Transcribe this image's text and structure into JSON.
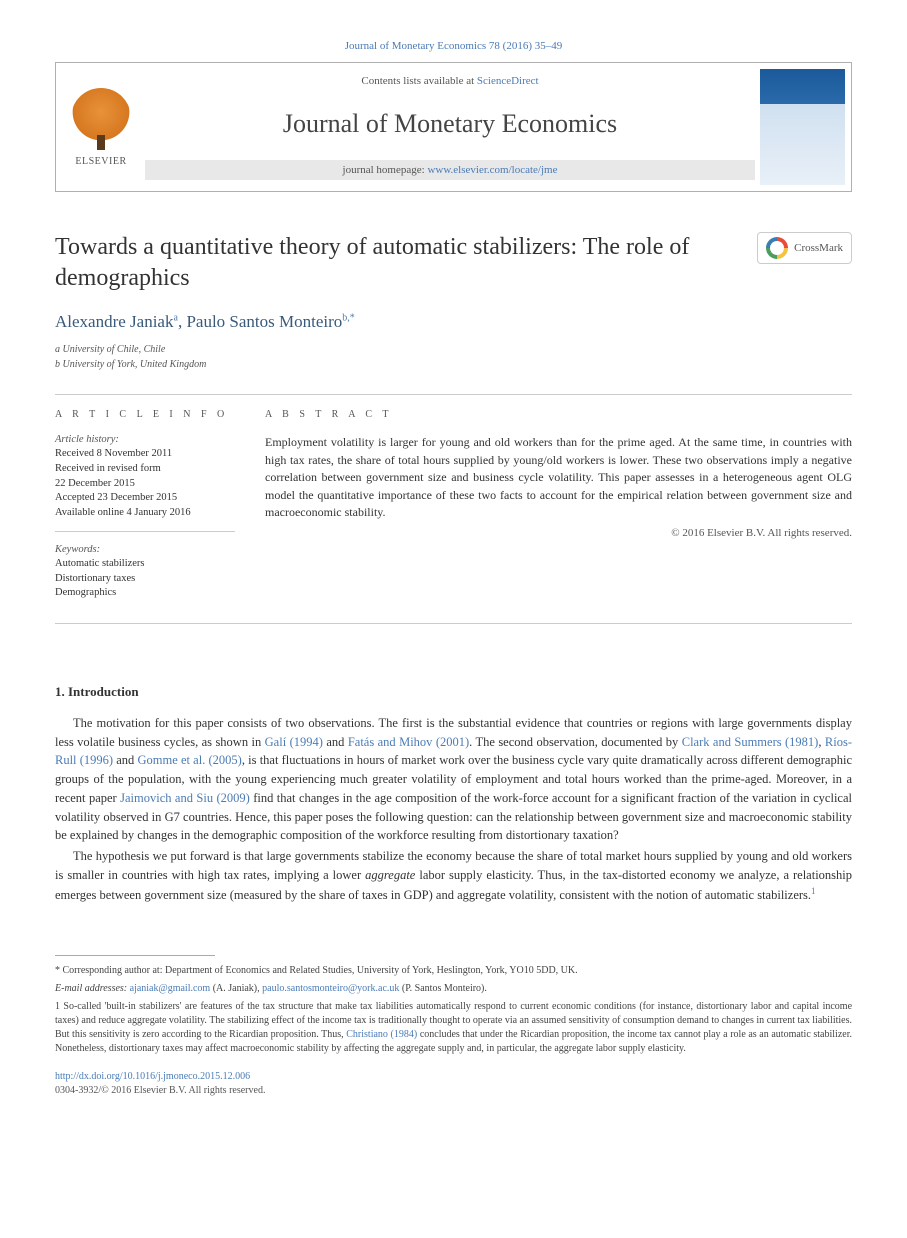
{
  "citation": "Journal of Monetary Economics 78 (2016) 35–49",
  "header": {
    "contents_prefix": "Contents lists available at ",
    "contents_link": "ScienceDirect",
    "journal_name": "Journal of Monetary Economics",
    "homepage_prefix": "journal homepage: ",
    "homepage_link": "www.elsevier.com/locate/jme",
    "publisher": "ELSEVIER"
  },
  "crossmark": "CrossMark",
  "title": "Towards a quantitative theory of automatic stabilizers: The role of demographics",
  "authors_html": "Alexandre Janiak",
  "author1": "Alexandre Janiak",
  "author1_sup": "a",
  "author2": "Paulo Santos Monteiro",
  "author2_sup": "b,",
  "author2_star": "*",
  "affiliations": {
    "a": "a University of Chile, Chile",
    "b": "b University of York, United Kingdom"
  },
  "info": {
    "heading": "A R T I C L E  I N F O",
    "history_label": "Article history:",
    "history": [
      "Received 8 November 2011",
      "Received in revised form",
      "22 December 2015",
      "Accepted 23 December 2015",
      "Available online 4 January 2016"
    ],
    "keywords_label": "Keywords:",
    "keywords": [
      "Automatic stabilizers",
      "Distortionary taxes",
      "Demographics"
    ]
  },
  "abstract": {
    "heading": "A B S T R A C T",
    "text": "Employment volatility is larger for young and old workers than for the prime aged. At the same time, in countries with high tax rates, the share of total hours supplied by young/old workers is lower. These two observations imply a negative correlation between government size and business cycle volatility. This paper assesses in a heterogeneous agent OLG model the quantitative importance of these two facts to account for the empirical relation between government size and macroeconomic stability.",
    "copyright": "© 2016 Elsevier B.V. All rights reserved."
  },
  "sections": {
    "intro_heading": "1.  Introduction",
    "para1_a": "The motivation for this paper consists of two observations. The first is the substantial evidence that countries or regions with large governments display less volatile business cycles, as shown in ",
    "para1_ref1": "Galí (1994)",
    "para1_b": " and ",
    "para1_ref2": "Fatás and Mihov (2001)",
    "para1_c": ". The second observation, documented by ",
    "para1_ref3": "Clark and Summers (1981)",
    "para1_d": ", ",
    "para1_ref4": "Ríos-Rull (1996)",
    "para1_e": " and ",
    "para1_ref5": "Gomme et al. (2005)",
    "para1_f": ", is that fluctuations in hours of market work over the business cycle vary quite dramatically across different demographic groups of the population, with the young experiencing much greater volatility of employment and total hours worked than the prime-aged. Moreover, in a recent paper ",
    "para1_ref6": "Jaimovich and Siu (2009)",
    "para1_g": " find that changes in the age composition of the work-force account for a significant fraction of the variation in cyclical volatility observed in G7 countries. Hence, this paper poses the following question: can the relationship between government size and macroeconomic stability be explained by changes in the demographic composition of the workforce resulting from distortionary taxation?",
    "para2_a": "The hypothesis we put forward is that large governments stabilize the economy because the share of total market hours supplied by young and old workers is smaller in countries with high tax rates, implying a lower ",
    "para2_em": "aggregate",
    "para2_b": " labor supply elasticity. Thus, in the tax-distorted economy we analyze, a relationship emerges between government size (measured by the share of taxes in GDP) and aggregate volatility, consistent with the notion of automatic stabilizers.",
    "para2_fn": "1"
  },
  "footnotes": {
    "corr_marker": "* ",
    "corr": "Corresponding author at: Department of Economics and Related Studies, University of York, Heslington, York, YO10 5DD, UK.",
    "email_label": "E-mail addresses: ",
    "email1": "ajaniak@gmail.com",
    "email1_who": " (A. Janiak), ",
    "email2": "paulo.santosmonteiro@york.ac.uk",
    "email2_who": " (P. Santos Monteiro).",
    "fn1_marker": "1 ",
    "fn1_a": "So-called 'built-in stabilizers' are features of the tax structure that make tax liabilities automatically respond to current economic conditions (for instance, distortionary labor and capital income taxes) and reduce aggregate volatility. The stabilizing effect of the income tax is traditionally thought to operate via an assumed sensitivity of consumption demand to changes in current tax liabilities. But this sensitivity is zero according to the Ricardian proposition. Thus, ",
    "fn1_ref": "Christiano (1984)",
    "fn1_b": " concludes that under the Ricardian proposition, the income tax cannot play a role as an automatic stabilizer. Nonetheless, distortionary taxes may affect macroeconomic stability by affecting the aggregate supply and, in particular, the aggregate labor supply elasticity."
  },
  "footer": {
    "doi": "http://dx.doi.org/10.1016/j.jmoneco.2015.12.006",
    "issn_line": "0304-3932/© 2016 Elsevier B.V. All rights reserved."
  },
  "colors": {
    "link": "#4a7bb5",
    "text": "#333333",
    "muted": "#555555",
    "border": "#cccccc"
  }
}
